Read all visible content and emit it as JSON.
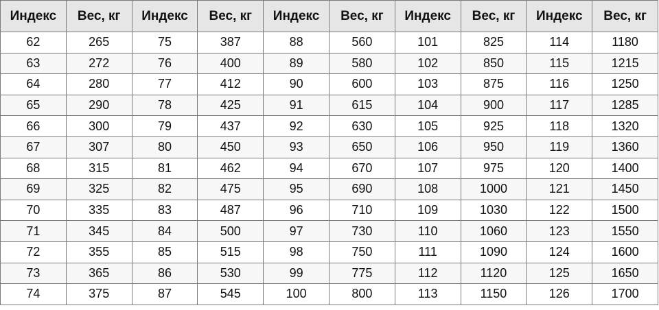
{
  "table": {
    "headers": [
      "Индекс",
      "Вес, кг",
      "Индекс",
      "Вес, кг",
      "Индекс",
      "Вес, кг",
      "Индекс",
      "Вес, кг",
      "Индекс",
      "Вес, кг"
    ],
    "rows": [
      [
        "62",
        "265",
        "75",
        "387",
        "88",
        "560",
        "101",
        "825",
        "114",
        "1180"
      ],
      [
        "63",
        "272",
        "76",
        "400",
        "89",
        "580",
        "102",
        "850",
        "115",
        "1215"
      ],
      [
        "64",
        "280",
        "77",
        "412",
        "90",
        "600",
        "103",
        "875",
        "116",
        "1250"
      ],
      [
        "65",
        "290",
        "78",
        "425",
        "91",
        "615",
        "104",
        "900",
        "117",
        "1285"
      ],
      [
        "66",
        "300",
        "79",
        "437",
        "92",
        "630",
        "105",
        "925",
        "118",
        "1320"
      ],
      [
        "67",
        "307",
        "80",
        "450",
        "93",
        "650",
        "106",
        "950",
        "119",
        "1360"
      ],
      [
        "68",
        "315",
        "81",
        "462",
        "94",
        "670",
        "107",
        "975",
        "120",
        "1400"
      ],
      [
        "69",
        "325",
        "82",
        "475",
        "95",
        "690",
        "108",
        "1000",
        "121",
        "1450"
      ],
      [
        "70",
        "335",
        "83",
        "487",
        "96",
        "710",
        "109",
        "1030",
        "122",
        "1500"
      ],
      [
        "71",
        "345",
        "84",
        "500",
        "97",
        "730",
        "110",
        "1060",
        "123",
        "1550"
      ],
      [
        "72",
        "355",
        "85",
        "515",
        "98",
        "750",
        "111",
        "1090",
        "124",
        "1600"
      ],
      [
        "73",
        "365",
        "86",
        "530",
        "99",
        "775",
        "112",
        "1120",
        "125",
        "1650"
      ],
      [
        "74",
        "375",
        "87",
        "545",
        "100",
        "800",
        "113",
        "1150",
        "126",
        "1700"
      ]
    ]
  }
}
